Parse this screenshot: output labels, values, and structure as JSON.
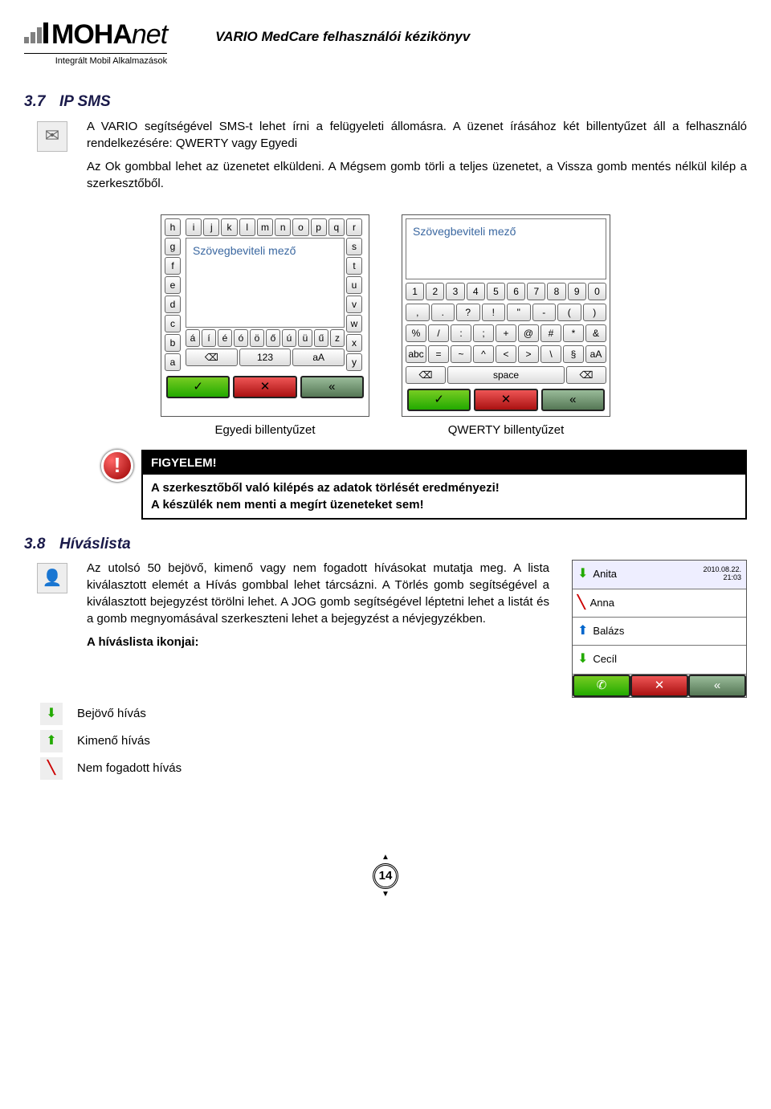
{
  "header": {
    "logo_main": "MOHA",
    "logo_net": "net",
    "logo_sub": "Integrált Mobil Alkalmazások",
    "doc_title": "VARIO MedCare felhasználói kézikönyv"
  },
  "section37": {
    "num": "3.7",
    "title": "IP SMS",
    "p1": "A VARIO segítségével SMS-t lehet írni a felügyeleti állomásra. A üzenet írásához két billentyűzet áll a felhasználó rendelkezésére: QWERTY vagy Egyedi",
    "p2": "Az Ok gombbal lehet az üzenetet elküldeni. A Mégsem gomb törli a teljes üzenetet, a Vissza gomb mentés nélkül kilép a szerkesztőből."
  },
  "keyboards": {
    "egyedi": {
      "placeholder": "Szövegbeviteli mező",
      "side_left": [
        "h",
        "g",
        "f",
        "e",
        "d",
        "c",
        "b",
        "a"
      ],
      "side_right": [
        "r",
        "s",
        "t",
        "u",
        "v",
        "w",
        "x",
        "y"
      ],
      "top_row": [
        "i",
        "j",
        "k",
        "l",
        "m",
        "n",
        "o",
        "p",
        "q"
      ],
      "accent_row": [
        "á",
        "í",
        "é",
        "ó",
        "ö",
        "ő",
        "ú",
        "ü",
        "ű",
        "z"
      ],
      "bottom_row": [
        "⌫",
        "123",
        "aA"
      ],
      "label": "Egyedi billentyűzet"
    },
    "qwerty": {
      "placeholder": "Szövegbeviteli mező",
      "row_digits": [
        "1",
        "2",
        "3",
        "4",
        "5",
        "6",
        "7",
        "8",
        "9",
        "0"
      ],
      "row_punc1": [
        ",",
        ".",
        "?",
        "!",
        "\"",
        "-",
        "(",
        ")"
      ],
      "row_punc2": [
        "%",
        "/",
        ":",
        ";",
        "+",
        "@",
        "#",
        "*",
        "&"
      ],
      "row_sym": [
        "abc",
        "=",
        "~",
        "^",
        "<",
        ">",
        "\\",
        "§",
        "aA"
      ],
      "row_space": [
        "⌫",
        "space",
        "⌫"
      ],
      "label": "QWERTY billentyűzet"
    },
    "bottom_buttons": [
      "✓",
      "✕",
      "«"
    ]
  },
  "figyelem": {
    "icon": "!",
    "title": "FIGYELEM!",
    "line1": "A szerkesztőből való kilépés az adatok törlését eredményezi!",
    "line2": "A készülék nem menti a megírt üzeneteket sem!"
  },
  "section38": {
    "num": "3.8",
    "title": "Híváslista",
    "p1": "Az utolsó 50 bejövő, kimenő vagy nem fogadott hívásokat mutatja meg. A lista kiválasztott elemét a Hívás gombbal lehet tárcsázni. A Törlés gomb segítségével a kiválasztott bejegyzést törölni lehet. A JOG gomb segítségével léptetni lehet a listát és a gomb megnyomásával szerkeszteni lehet a bejegyzést a névjegyzékben.",
    "icons_head": "A híváslista ikonjai:",
    "bejovo": "Bejövő hívás",
    "kimeno": "Kimenő hívás",
    "nemfog": "Nem fogadott hívás"
  },
  "calllist": {
    "rows": [
      {
        "type": "in",
        "name": "Anita",
        "date": "2010.08.22.",
        "time": "21:03",
        "selected": true
      },
      {
        "type": "miss",
        "name": "Anna"
      },
      {
        "type": "out",
        "name": "Balázs"
      },
      {
        "type": "in",
        "name": "Cecíl"
      }
    ],
    "buttons": [
      "phone",
      "✕",
      "«"
    ]
  },
  "colors": {
    "green": "#55aa11",
    "red": "#cc2211",
    "grey": "#667755",
    "blue_text": "#3a67a0"
  },
  "page_number": "14"
}
